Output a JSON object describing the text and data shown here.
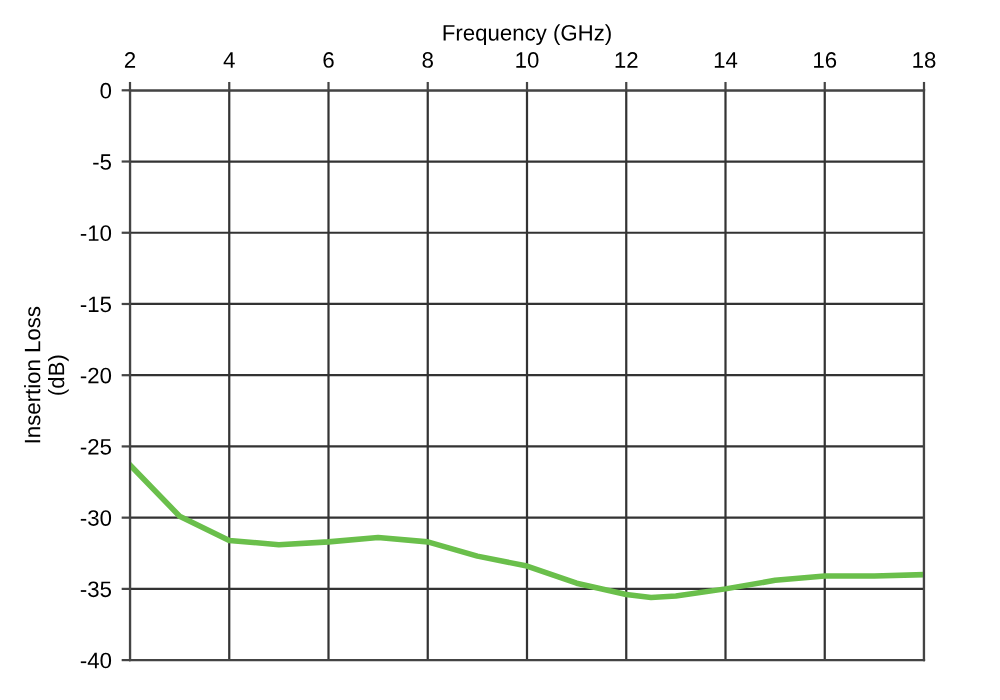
{
  "chart_data": {
    "type": "line",
    "xlabel": "Frequency (GHz)",
    "ylabel": "Insertion Loss\n(dB)",
    "x": [
      2,
      3,
      4,
      5,
      6,
      7,
      8,
      9,
      10,
      11,
      12,
      12.5,
      13,
      14,
      15,
      16,
      17,
      18
    ],
    "series": [
      {
        "color": "#6abf4b",
        "values": [
          -26.3,
          -29.9,
          -31.6,
          -31.9,
          -31.7,
          -31.4,
          -31.7,
          -32.7,
          -33.4,
          -34.6,
          -35.4,
          -35.6,
          -35.5,
          -35.0,
          -34.4,
          -34.1,
          -34.1,
          -34.0
        ]
      }
    ],
    "xlim": [
      2,
      18
    ],
    "xticks": [
      2,
      4,
      6,
      8,
      10,
      12,
      14,
      16,
      18
    ],
    "ylim": [
      -40,
      0
    ],
    "yticks": [
      0,
      -5,
      -10,
      -15,
      -20,
      -25,
      -30,
      -35,
      -40
    ],
    "grid": true,
    "marker": "none",
    "line_style": "solid"
  }
}
